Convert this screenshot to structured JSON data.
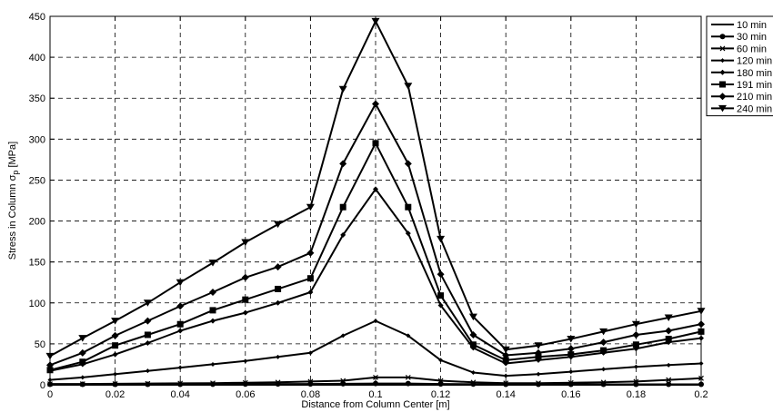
{
  "chart_data": {
    "type": "line",
    "xlabel": "Distance from Column Center [m]",
    "ylabel_parts": {
      "main": "Stress in Column σ",
      "sub": "p",
      "unit": " [MPa]"
    },
    "xlim": [
      0,
      0.2
    ],
    "ylim": [
      0,
      450
    ],
    "xticks": [
      0,
      0.02,
      0.04,
      0.06,
      0.08,
      0.1,
      0.12,
      0.14,
      0.16,
      0.18,
      0.2
    ],
    "xtick_labels": [
      "0",
      "0.02",
      "0.04",
      "0.06",
      "0.08",
      "0.1",
      "0.12",
      "0.14",
      "0.16",
      "0.18",
      "0.2"
    ],
    "yticks": [
      0,
      50,
      100,
      150,
      200,
      250,
      300,
      350,
      400,
      450
    ],
    "ytick_labels": [
      "0",
      "50",
      "100",
      "150",
      "200",
      "250",
      "300",
      "350",
      "400",
      "450"
    ],
    "grid": true,
    "legend_position": "right",
    "x": [
      0,
      0.01,
      0.02,
      0.03,
      0.04,
      0.05,
      0.06,
      0.07,
      0.08,
      0.09,
      0.1,
      0.11,
      0.12,
      0.13,
      0.14,
      0.15,
      0.16,
      0.17,
      0.18,
      0.19,
      0.2
    ],
    "series": [
      {
        "name": "10 min",
        "marker": "none",
        "values": [
          0,
          0,
          0,
          0,
          0,
          0,
          0,
          0,
          0,
          0,
          0,
          0,
          0,
          0,
          0,
          0,
          0,
          0,
          0,
          0,
          0
        ]
      },
      {
        "name": "30 min",
        "marker": "circle",
        "values": [
          0.5,
          0.5,
          0.5,
          0.5,
          0.6,
          0.7,
          0.8,
          1,
          1,
          1.2,
          1.5,
          1.5,
          1,
          0.8,
          0.5,
          0.5,
          0.5,
          0.5,
          0.5,
          0.5,
          0.5
        ]
      },
      {
        "name": "60 min",
        "marker": "x",
        "values": [
          1,
          1,
          1.2,
          1.5,
          1.8,
          2,
          2.5,
          3,
          4,
          5,
          9,
          9,
          5,
          3,
          2,
          2,
          2.5,
          3,
          4,
          6,
          8
        ]
      },
      {
        "name": "120 min",
        "marker": "small-diamond",
        "values": [
          6,
          9,
          13,
          17,
          21,
          25,
          29,
          34,
          39,
          60,
          78,
          60,
          30,
          15,
          11,
          13,
          16,
          19,
          22,
          24,
          26
        ]
      },
      {
        "name": "180 min",
        "marker": "diamond",
        "values": [
          17,
          25,
          37,
          51,
          66,
          78,
          88,
          100,
          113,
          183,
          239,
          185,
          97,
          45,
          26,
          30,
          34,
          39,
          44,
          52,
          57
        ]
      },
      {
        "name": "191 min",
        "marker": "square",
        "values": [
          18,
          28,
          48,
          61,
          74,
          91,
          104,
          117,
          130,
          217,
          295,
          217,
          109,
          49,
          30,
          34,
          37,
          42,
          49,
          56,
          65
        ]
      },
      {
        "name": "210 min",
        "marker": "diamond-filled",
        "values": [
          24,
          39,
          60,
          78,
          96,
          113,
          131,
          144,
          161,
          270,
          343,
          270,
          135,
          61,
          36,
          39,
          44,
          52,
          61,
          66,
          74
        ]
      },
      {
        "name": "240 min",
        "marker": "triangle-down",
        "values": [
          35,
          57,
          78,
          100,
          125,
          149,
          174,
          196,
          217,
          361,
          444,
          365,
          178,
          83,
          43,
          48,
          56,
          65,
          74,
          82,
          90
        ]
      }
    ]
  }
}
